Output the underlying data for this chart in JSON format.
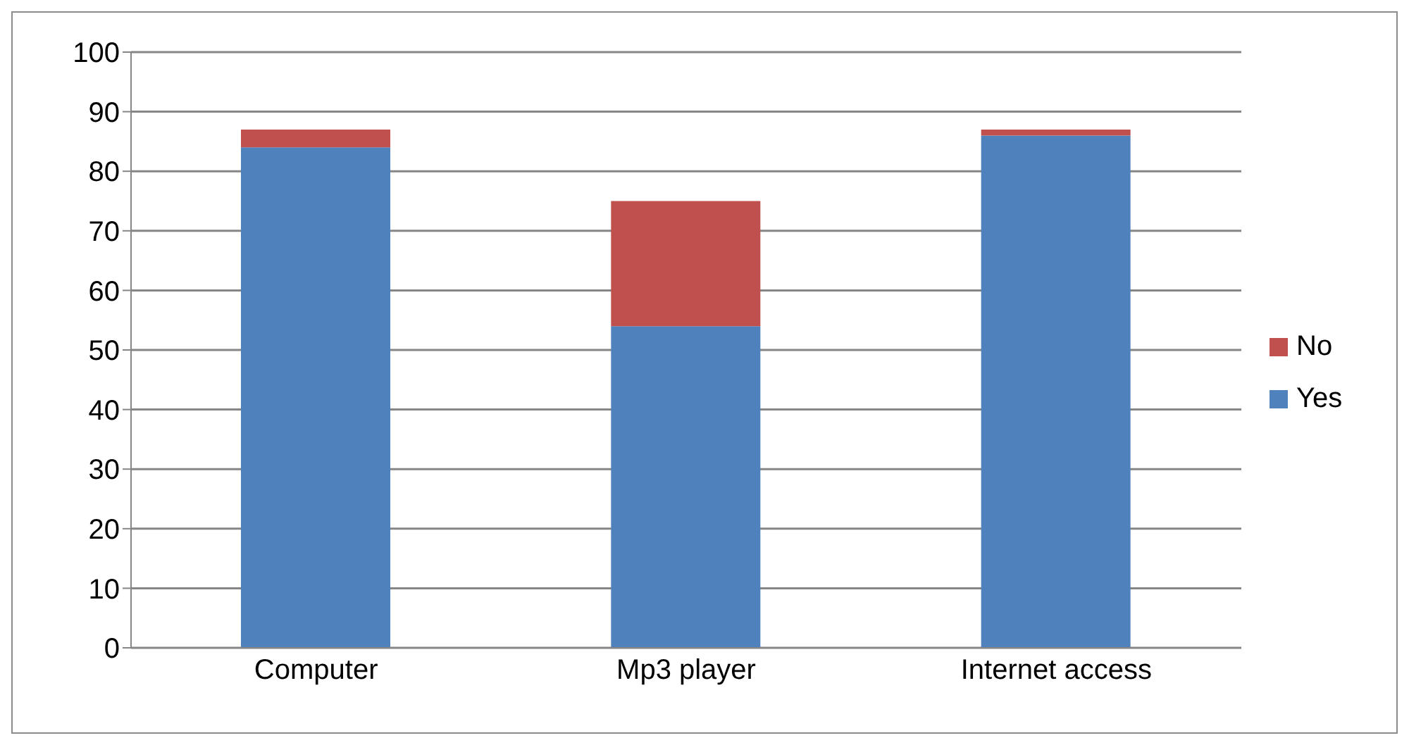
{
  "chart_data": {
    "type": "bar",
    "stacked": true,
    "categories": [
      "Computer",
      "Mp3 player",
      "Internet access"
    ],
    "series": [
      {
        "name": "Yes",
        "color": "#4f81bd",
        "values": [
          84,
          54,
          86
        ]
      },
      {
        "name": "No",
        "color": "#c0504d",
        "values": [
          3,
          21,
          1
        ]
      }
    ],
    "ylim": [
      0,
      100
    ],
    "yticks": [
      0,
      10,
      20,
      30,
      40,
      50,
      60,
      70,
      80,
      90,
      100
    ],
    "grid": "y",
    "legend": "right"
  }
}
